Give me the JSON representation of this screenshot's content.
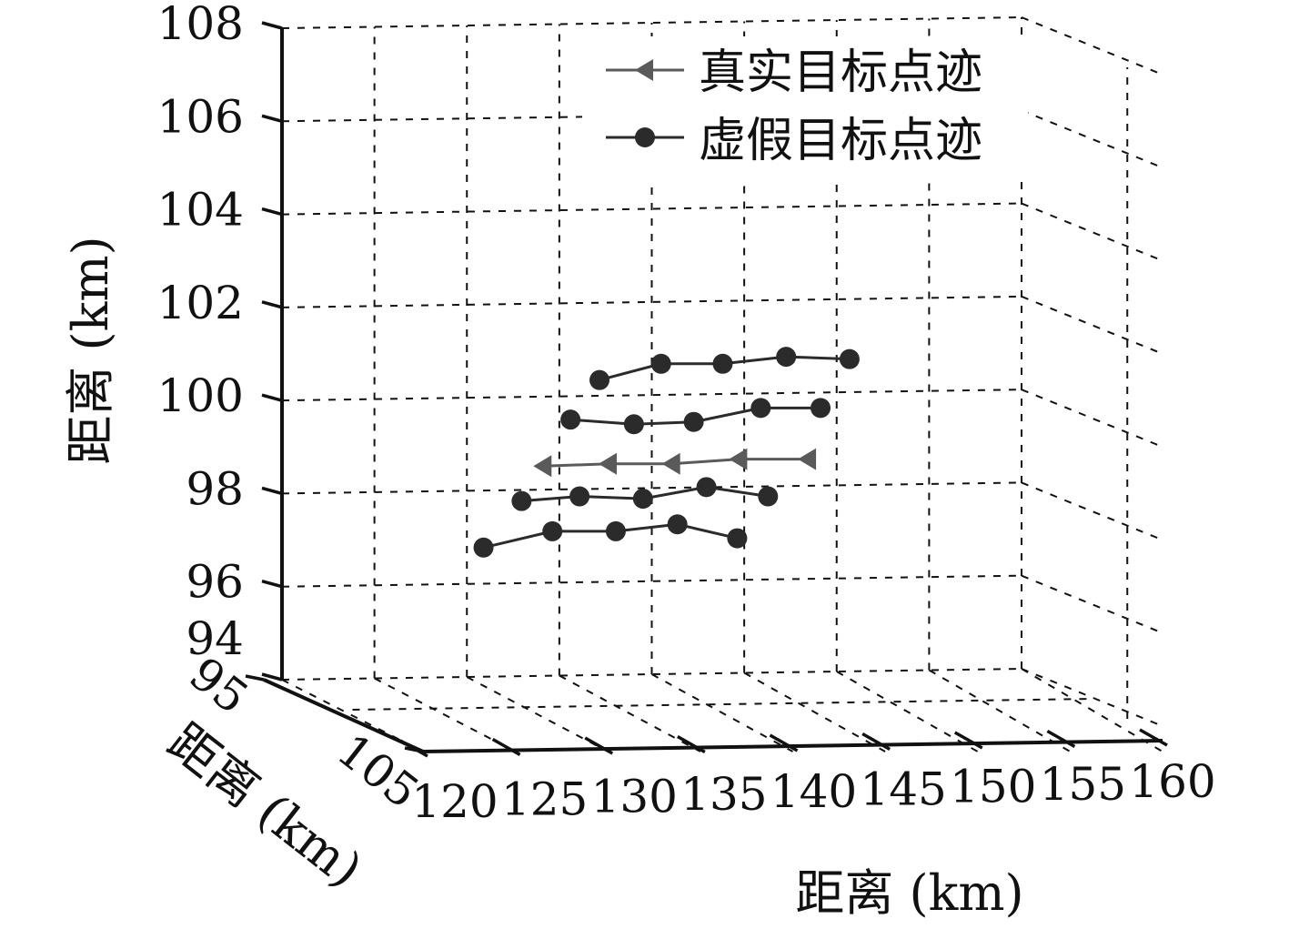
{
  "chart_data": {
    "type": "line3d",
    "title": "",
    "axes": {
      "x": {
        "label": "距离 (km)",
        "ticks": [
          120,
          125,
          130,
          135,
          140,
          145,
          150,
          155,
          160
        ],
        "range": [
          120,
          160
        ]
      },
      "y": {
        "label": "距离 (km)",
        "ticks": [
          95,
          105
        ],
        "range": [
          95,
          105
        ]
      },
      "z": {
        "label": "距离 (km)",
        "ticks": [
          94,
          96,
          98,
          100,
          102,
          104,
          106,
          108
        ],
        "range": [
          94,
          108
        ]
      }
    },
    "grid": true,
    "legend": {
      "position": "top-right",
      "entries": [
        "真实目标点迹",
        "虚假目标点迹"
      ]
    },
    "series": [
      {
        "name": "真实目标点迹",
        "marker": "triangle-left",
        "color": "#5a5a5a",
        "points": [
          {
            "x": 128.9,
            "z": 98.55
          },
          {
            "x": 132.5,
            "z": 98.6
          },
          {
            "x": 136.0,
            "z": 98.6
          },
          {
            "x": 139.7,
            "z": 98.7
          },
          {
            "x": 143.5,
            "z": 98.7
          }
        ]
      },
      {
        "name": "虚假目标点迹",
        "marker": "circle",
        "color": "#2b2b2b",
        "group": 1,
        "points": [
          {
            "x": 125.6,
            "z": 96.8
          },
          {
            "x": 129.4,
            "z": 97.15
          },
          {
            "x": 132.9,
            "z": 97.15
          },
          {
            "x": 136.3,
            "z": 97.3
          },
          {
            "x": 139.6,
            "z": 97.0
          }
        ]
      },
      {
        "name": "虚假目标点迹",
        "marker": "circle",
        "color": "#2b2b2b",
        "group": 2,
        "points": [
          {
            "x": 127.7,
            "z": 97.8
          },
          {
            "x": 130.9,
            "z": 97.9
          },
          {
            "x": 134.4,
            "z": 97.85
          },
          {
            "x": 137.9,
            "z": 98.1
          },
          {
            "x": 141.3,
            "z": 97.9
          }
        ]
      },
      {
        "name": "虚假目标点迹",
        "marker": "circle",
        "color": "#2b2b2b",
        "group": 3,
        "points": [
          {
            "x": 130.4,
            "z": 99.55
          },
          {
            "x": 133.9,
            "z": 99.45
          },
          {
            "x": 137.2,
            "z": 99.5
          },
          {
            "x": 140.9,
            "z": 99.8
          },
          {
            "x": 144.2,
            "z": 99.8
          }
        ]
      },
      {
        "name": "虚假目标点迹",
        "marker": "circle",
        "color": "#2b2b2b",
        "group": 4,
        "points": [
          {
            "x": 132.0,
            "z": 100.4
          },
          {
            "x": 135.4,
            "z": 100.75
          },
          {
            "x": 138.8,
            "z": 100.75
          },
          {
            "x": 142.3,
            "z": 100.9
          },
          {
            "x": 145.8,
            "z": 100.85
          }
        ]
      }
    ]
  }
}
